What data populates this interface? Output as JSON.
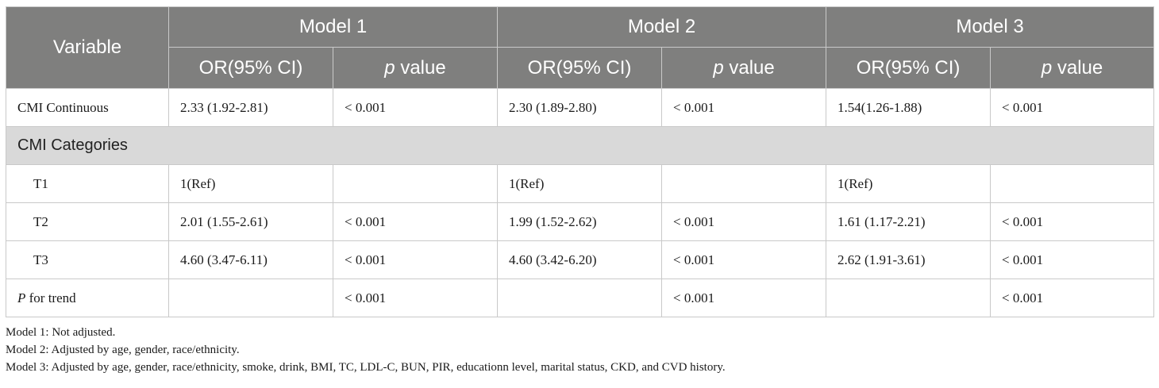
{
  "table": {
    "header": {
      "variable": "Variable",
      "models": [
        "Model 1",
        "Model 2",
        "Model 3"
      ],
      "or_label": "OR(95% CI)",
      "p_italic": "p",
      "p_suffix": " value"
    },
    "rows": {
      "continuous": {
        "label": "CMI Continuous",
        "cells": [
          "2.33 (1.92-2.81)",
          "< 0.001",
          "2.30 (1.89-2.80)",
          "< 0.001",
          "1.54(1.26-1.88)",
          "< 0.001"
        ]
      },
      "categories_label": "CMI Categories",
      "t1": {
        "label": "T1",
        "cells": [
          "1(Ref)",
          "",
          "1(Ref)",
          "",
          "1(Ref)",
          ""
        ]
      },
      "t2": {
        "label": "T2",
        "cells": [
          "2.01 (1.55-2.61)",
          "< 0.001",
          "1.99 (1.52-2.62)",
          "< 0.001",
          "1.61 (1.17-2.21)",
          "< 0.001"
        ]
      },
      "t3": {
        "label": "T3",
        "cells": [
          "4.60 (3.47-6.11)",
          "< 0.001",
          "4.60 (3.42-6.20)",
          "< 0.001",
          "2.62 (1.91-3.61)",
          "< 0.001"
        ]
      },
      "trend": {
        "label_italic": "P",
        "label_suffix": " for trend",
        "cells": [
          "",
          "< 0.001",
          "",
          "< 0.001",
          "",
          "< 0.001"
        ]
      }
    }
  },
  "notes": [
    "Model 1: Not adjusted.",
    "Model 2: Adjusted by age, gender, race/ethnicity.",
    "Model 3: Adjusted by age, gender, race/ethnicity, smoke, drink, BMI, TC, LDL-C, BUN, PIR, educationn level, marital status, CKD, and CVD history."
  ],
  "colors": {
    "header_bg": "#7f7f7e",
    "header_text": "#ffffff",
    "category_bg": "#d9d9d9",
    "border": "#c9c9c9"
  }
}
